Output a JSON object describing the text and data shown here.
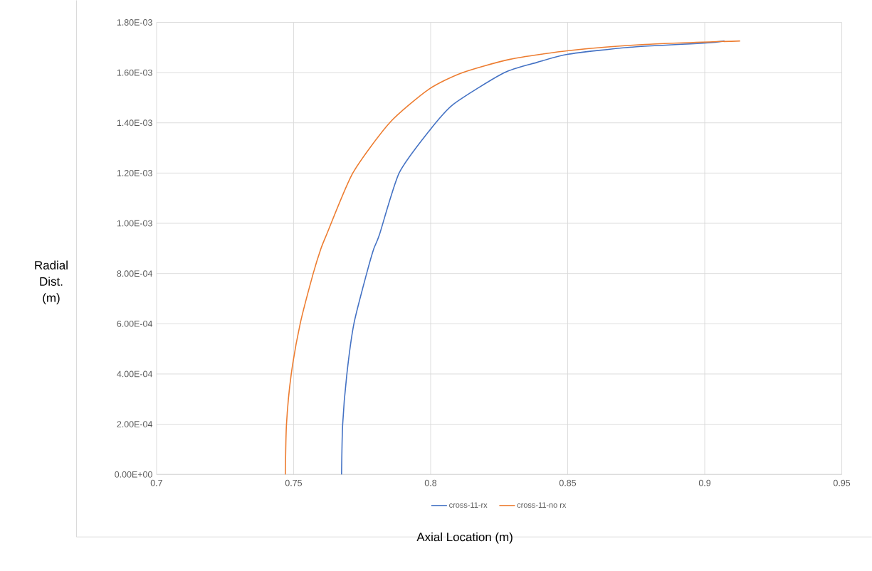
{
  "chart_data": {
    "type": "line",
    "xlabel": "Axial Location (m)",
    "ylabel": "Radial Dist. (m)",
    "series": [
      {
        "name": "cross-11-rx",
        "color": "#4472c4",
        "x": [
          0.7675,
          0.7679,
          0.7694,
          0.772,
          0.7766,
          0.7792,
          0.7813,
          0.7885,
          0.7994,
          0.8083,
          0.8267,
          0.8389,
          0.8501,
          0.8726,
          0.9002,
          0.9072
        ],
        "values": [
          0,
          0.000198,
          0.000396,
          0.0006,
          0.000798,
          0.000897,
          0.000954,
          0.0012,
          0.001367,
          0.001474,
          0.001599,
          0.001641,
          0.001673,
          0.001701,
          0.001718,
          0.001726
        ]
      },
      {
        "name": "cross-11-no rx",
        "color": "#ed7d31",
        "x": [
          0.747,
          0.7474,
          0.7491,
          0.7524,
          0.7571,
          0.7599,
          0.762,
          0.7716,
          0.7852,
          0.7994,
          0.8114,
          0.829,
          0.8508,
          0.8781,
          0.9129
        ],
        "values": [
          0,
          0.000198,
          0.000396,
          0.0006,
          0.000798,
          0.000897,
          0.000954,
          0.0012,
          0.001402,
          0.001534,
          0.001599,
          0.001653,
          0.001688,
          0.001712,
          0.001726
        ]
      }
    ],
    "xlim": [
      0.7,
      0.95
    ],
    "xticks": [
      0.7,
      0.75,
      0.8,
      0.85,
      0.9,
      0.95
    ],
    "ylim": [
      0,
      0.0018
    ],
    "yticks": [
      {
        "value": 0,
        "label": "0.00E+00"
      },
      {
        "value": 0.0002,
        "label": "2.00E-04"
      },
      {
        "value": 0.0004,
        "label": "4.00E-04"
      },
      {
        "value": 0.0006,
        "label": "6.00E-04"
      },
      {
        "value": 0.0008,
        "label": "8.00E-04"
      },
      {
        "value": 0.001,
        "label": "1.00E-03"
      },
      {
        "value": 0.0012,
        "label": "1.20E-03"
      },
      {
        "value": 0.0014,
        "label": "1.40E-03"
      },
      {
        "value": 0.0016,
        "label": "1.60E-03"
      },
      {
        "value": 0.0018,
        "label": "1.80E-03"
      }
    ],
    "grid": true,
    "legend": "bottom",
    "marker": "none",
    "line_style": "solid"
  }
}
